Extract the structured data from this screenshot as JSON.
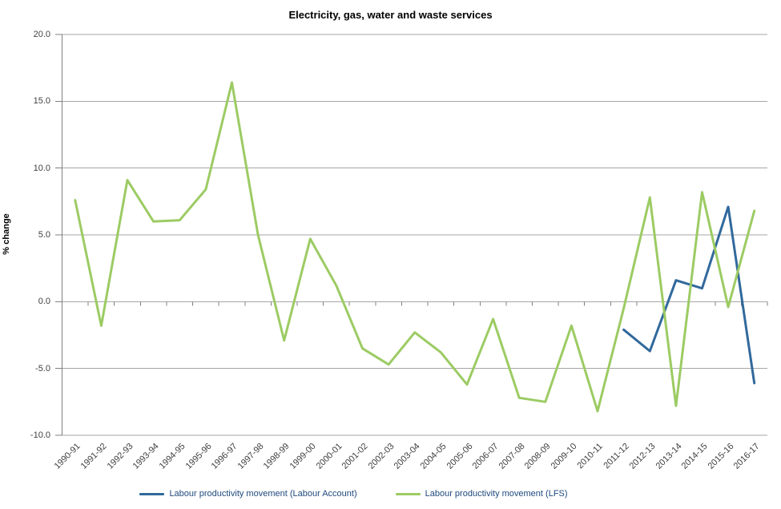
{
  "title": "Electricity, gas, water and waste services",
  "colors": {
    "gridline": "#A6A6A6",
    "axis": "#808080",
    "tick_label": "#3F3F3F",
    "legend_text": "#1F497D",
    "labour_account_line": "#31699C",
    "lfs_line": "#9CCB63"
  },
  "legend": {
    "items": [
      {
        "label": "Labour productivity movement (Labour Account)",
        "color": "#31699C"
      },
      {
        "label": "Labour productivity movement (LFS)",
        "color": "#9CCB63"
      }
    ]
  },
  "chart_data": {
    "type": "line",
    "title": "Electricity, gas, water and waste services",
    "xlabel": "",
    "ylabel": "% change",
    "ylim": [
      -10,
      20
    ],
    "y_tick_interval": 5,
    "y_ticks": [
      {
        "value": 20,
        "label": "20.0"
      },
      {
        "value": 15,
        "label": "15.0"
      },
      {
        "value": 10,
        "label": "10.0"
      },
      {
        "value": 5,
        "label": "5.0"
      },
      {
        "value": 0,
        "label": "0.0"
      },
      {
        "value": -5,
        "label": "-5.0"
      },
      {
        "value": -10,
        "label": "-10.0"
      }
    ],
    "grid": "horizontal",
    "legend_position": "bottom",
    "categories": [
      "1990-91",
      "1991-92",
      "1992-93",
      "1993-94",
      "1994-95",
      "1995-96",
      "1996-97",
      "1997-98",
      "1998-99",
      "1999-00",
      "2000-01",
      "2001-02",
      "2002-03",
      "2003-04",
      "2004-05",
      "2005-06",
      "2006-07",
      "2007-08",
      "2008-09",
      "2009-10",
      "2010-11",
      "2011-12",
      "2012-13",
      "2013-14",
      "2014-15",
      "2015-16",
      "2016-17"
    ],
    "series": [
      {
        "name": "Labour productivity movement (Labour Account)",
        "color": "#31699C",
        "values": [
          null,
          null,
          null,
          null,
          null,
          null,
          null,
          null,
          null,
          null,
          null,
          null,
          null,
          null,
          null,
          null,
          null,
          null,
          null,
          null,
          null,
          -2.1,
          -3.7,
          1.6,
          1.0,
          7.1,
          -6.1
        ]
      },
      {
        "name": "Labour productivity movement (LFS)",
        "color": "#9CCB63",
        "values": [
          7.6,
          -1.8,
          9.1,
          6.0,
          6.1,
          8.4,
          16.4,
          5.0,
          -2.9,
          4.7,
          1.2,
          -3.5,
          -4.7,
          -2.3,
          -3.8,
          -6.2,
          -1.3,
          -7.2,
          -7.5,
          -1.8,
          -8.2,
          -0.5,
          7.8,
          -7.8,
          8.2,
          -0.4,
          6.8
        ]
      }
    ]
  }
}
